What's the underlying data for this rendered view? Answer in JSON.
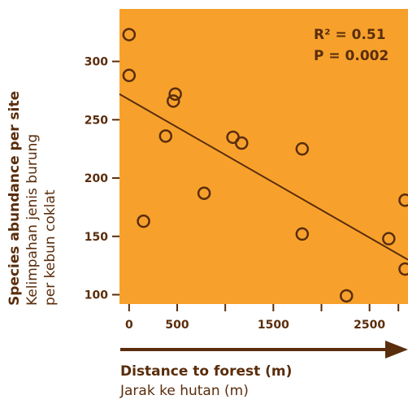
{
  "colors": {
    "plot_bg": "#f7a12c",
    "axis": "#5a2d0c",
    "text": "#5a2d0c"
  },
  "chart_data": {
    "type": "scatter",
    "xlabel": "Distance to forest (m)",
    "xlabel_local": "Jarak ke hutan (m)",
    "ylabel": "Species abundance per site",
    "ylabel_local_line1": "Kelimpahan jenis burung",
    "ylabel_local_line2": "per kebun coklat",
    "x_ticks": [
      0,
      500,
      1500,
      2500
    ],
    "y_ticks": [
      100,
      150,
      200,
      250,
      300
    ],
    "xlim": [
      -100,
      2900
    ],
    "ylim": [
      92,
      345
    ],
    "points": [
      {
        "x": 0,
        "y": 323
      },
      {
        "x": 0,
        "y": 288
      },
      {
        "x": 480,
        "y": 272
      },
      {
        "x": 460,
        "y": 266
      },
      {
        "x": 380,
        "y": 236
      },
      {
        "x": 150,
        "y": 163
      },
      {
        "x": 780,
        "y": 187
      },
      {
        "x": 1080,
        "y": 235
      },
      {
        "x": 1170,
        "y": 230
      },
      {
        "x": 1800,
        "y": 225
      },
      {
        "x": 1800,
        "y": 152
      },
      {
        "x": 2260,
        "y": 99
      },
      {
        "x": 2700,
        "y": 148
      },
      {
        "x": 2870,
        "y": 181
      },
      {
        "x": 2870,
        "y": 122
      }
    ],
    "fit_line": {
      "x1": -100,
      "y1": 272,
      "x2": 2900,
      "y2": 130
    },
    "stats": {
      "r2": "R² = 0.51",
      "p": "P = 0.002"
    },
    "arrow": true,
    "grid": false
  }
}
